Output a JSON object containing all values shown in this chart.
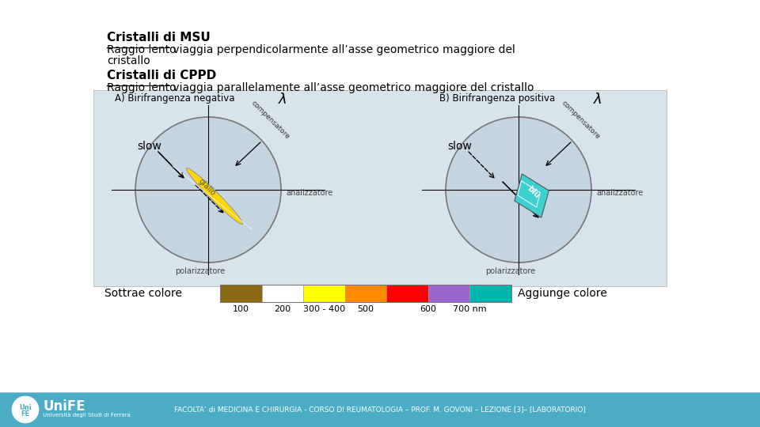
{
  "bg_color": "#ffffff",
  "white": "#ffffff",
  "title1_bold": "Cristalli di MSU",
  "line1_underlined": "Raggio lento",
  "line1_rest": " viaggia perpendicolarmente all’asse geometrico maggiore del",
  "line1b": "cristallo",
  "title2_bold": "Cristalli di CPPD",
  "line2_underlined": "Raggio lento",
  "line2_rest": " viaggia parallelamente all’asse geometrico maggiore del cristallo",
  "color_bar_colors": [
    "#8B6914",
    "#ffffff",
    "#FFFF00",
    "#FF8C00",
    "#FF0000",
    "#9966CC",
    "#00B5AD"
  ],
  "color_bar_labels": [
    "100",
    "200",
    "300 - 400",
    "500",
    "600",
    "700 nm"
  ],
  "label_left": "Sottrae colore",
  "label_right": "Aggiunge colore",
  "footer_bg": "#4BACC6",
  "footer_text": "FACOLTA’ di MEDICINA E CHIRURGIA - CORSO DI REUMATOLOGIA – PROF. M. GOVONI – LEZIONE [3]– [LABORATORIO]",
  "footer_logo_text": "UniFE",
  "footer_logo_sub": "Università degli Studi di Ferrara",
  "panel_bg": "#D8E4EC",
  "panel_label_A": "A) Birifrangenza negativa",
  "panel_label_B": "B) Birifrangenza positiva",
  "slow_label": "slow",
  "analizzatore_label": "analizzatore",
  "polarizzatore_label": "polarizzatore",
  "compensatore_label": "compensatore",
  "giallo_label": "giallo",
  "blu_label": "blu",
  "lambda_symbol": "λ"
}
